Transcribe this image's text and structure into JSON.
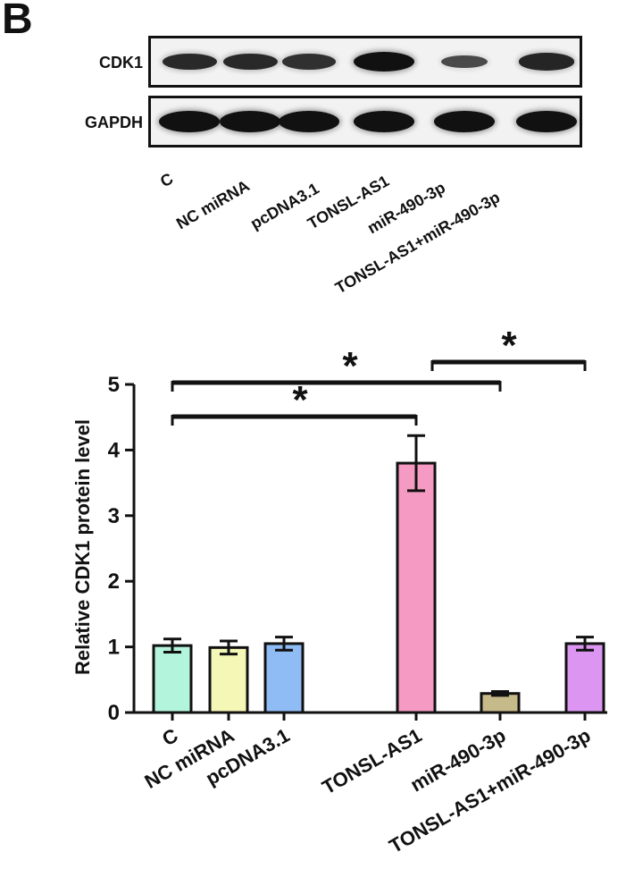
{
  "panel_letter": "B",
  "blot": {
    "rows": [
      {
        "label": "CDK1",
        "intensities": [
          0.75,
          0.75,
          0.7,
          1.0,
          0.45,
          0.8
        ]
      },
      {
        "label": "GAPDH",
        "intensities": [
          1.0,
          1.0,
          1.0,
          1.0,
          1.0,
          1.0
        ]
      }
    ],
    "lanes": [
      "C",
      "NC miRNA",
      "pcDNA3.1",
      "TONSL-AS1",
      "miR-490-3p",
      "TONSL-AS1+miR-490-3p"
    ]
  },
  "chart_data": {
    "type": "bar",
    "title": "",
    "xlabel": "",
    "ylabel": "Relative CDK1 protein level",
    "ylim": [
      0,
      5
    ],
    "yticks": [
      0,
      1,
      2,
      3,
      4,
      5
    ],
    "categories": [
      "C",
      "NC miRNA",
      "pcDNA3.1",
      "TONSL-AS1",
      "miR-490-3p",
      "TONSL-AS1+miR-490-3p"
    ],
    "values": [
      1.02,
      0.99,
      1.05,
      3.8,
      0.29,
      1.05
    ],
    "errors": [
      0.1,
      0.1,
      0.1,
      0.42,
      0.03,
      0.1
    ],
    "colors": [
      "#b3f5dc",
      "#f5f7b6",
      "#8fbcf5",
      "#f59ac2",
      "#c6b98a",
      "#dc96f2"
    ],
    "significance": [
      {
        "from": "C",
        "to": "TONSL-AS1",
        "label": "*",
        "level": 4.5
      },
      {
        "from": "C",
        "to": "miR-490-3p",
        "label": "*",
        "level": 4.95
      },
      {
        "from": "TONSL-AS1",
        "to": "TONSL-AS1+miR-490-3p",
        "label": "*",
        "level": 5.3
      }
    ]
  }
}
